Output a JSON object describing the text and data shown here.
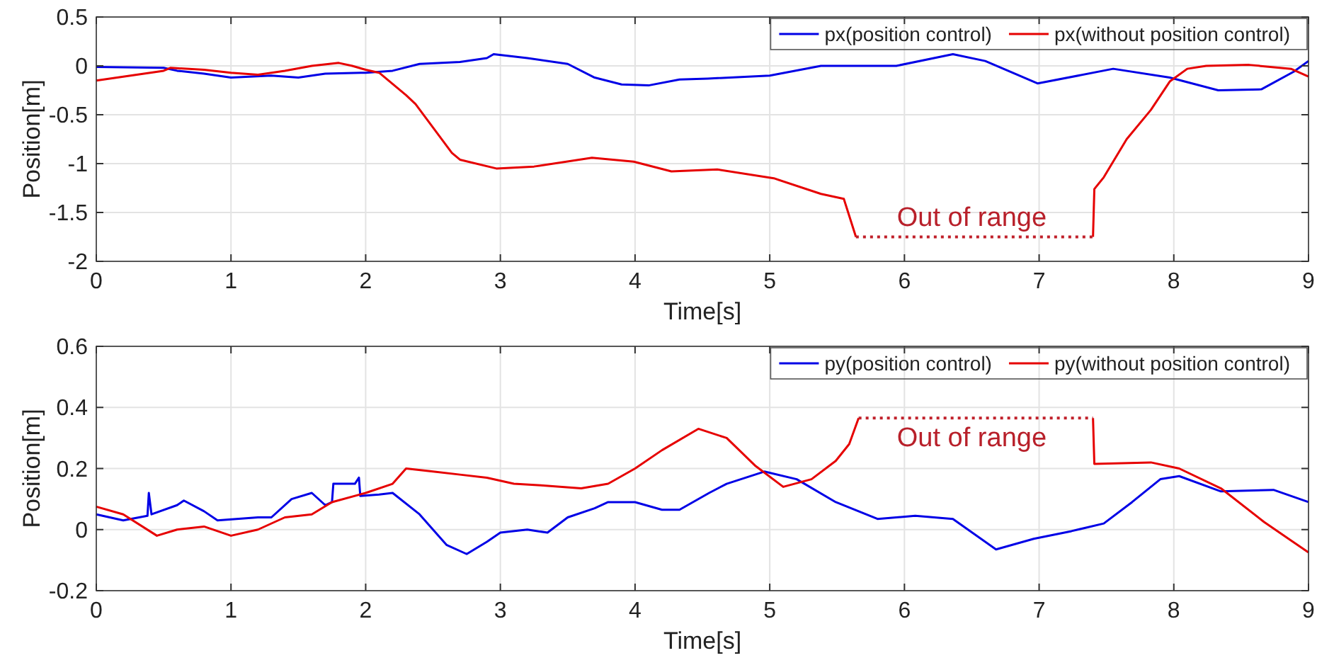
{
  "chart_data": [
    {
      "type": "line",
      "xlabel": "Time[s]",
      "ylabel": "Position[m]",
      "xlim": [
        0,
        9
      ],
      "ylim": [
        -2,
        0.5
      ],
      "xticks": [
        0,
        1,
        2,
        3,
        4,
        5,
        6,
        7,
        8,
        9
      ],
      "yticks": [
        -2,
        -1.5,
        -1,
        -0.5,
        0,
        0.5
      ],
      "grid": true,
      "legend": "top right",
      "line_style": "solid",
      "annotations": [
        {
          "text": "Out of range",
          "x": 6.5,
          "y": -1.75
        }
      ],
      "series": [
        {
          "name": "px(position control)",
          "color": "#0000e6",
          "x": [
            0,
            0.5,
            0.6,
            0.8,
            1.0,
            1.3,
            1.5,
            1.7,
            2.0,
            2.2,
            2.4,
            2.7,
            2.9,
            2.95,
            3.2,
            3.5,
            3.7,
            3.9,
            4.1,
            4.33,
            4.54,
            5.0,
            5.38,
            5.94,
            6.36,
            6.6,
            6.99,
            7.55,
            7.97,
            8.33,
            8.65,
            8.89,
            9.0
          ],
          "values": [
            -0.01,
            -0.02,
            -0.05,
            -0.08,
            -0.12,
            -0.1,
            -0.12,
            -0.08,
            -0.07,
            -0.05,
            0.02,
            0.04,
            0.08,
            0.12,
            0.08,
            0.02,
            -0.12,
            -0.19,
            -0.2,
            -0.14,
            -0.13,
            -0.1,
            0.0,
            0.0,
            0.12,
            0.05,
            -0.18,
            -0.03,
            -0.12,
            -0.25,
            -0.24,
            -0.06,
            0.05
          ]
        },
        {
          "name": "px(without position control)",
          "color": "#e60000",
          "x": [
            0,
            0.5,
            0.55,
            0.8,
            1.0,
            1.2,
            1.4,
            1.6,
            1.8,
            1.9,
            2.0,
            2.1,
            2.3,
            2.37,
            2.64,
            2.7,
            2.97,
            3.25,
            3.68,
            3.99,
            4.27,
            4.61,
            5.03,
            5.38,
            5.55,
            5.64,
            6.5,
            7.4,
            7.41,
            7.48,
            7.65,
            7.83,
            7.97,
            8.1,
            8.24,
            8.56,
            8.87,
            9.0
          ],
          "values": [
            -0.15,
            -0.05,
            -0.02,
            -0.04,
            -0.07,
            -0.09,
            -0.05,
            0.0,
            0.03,
            0.0,
            -0.04,
            -0.07,
            -0.3,
            -0.39,
            -0.89,
            -0.96,
            -1.05,
            -1.03,
            -0.94,
            -0.98,
            -1.08,
            -1.06,
            -1.15,
            -1.31,
            -1.36,
            -1.75,
            null,
            -1.75,
            -1.26,
            -1.14,
            -0.75,
            -0.45,
            -0.16,
            -0.03,
            0.0,
            0.01,
            -0.03,
            -0.11
          ]
        },
        {
          "color": "#c0202a",
          "line_style": "dotted",
          "x": [
            5.64,
            7.4
          ],
          "values": [
            -1.75,
            -1.75
          ]
        }
      ]
    },
    {
      "type": "line",
      "xlabel": "Time[s]",
      "ylabel": "Position[m]",
      "xlim": [
        0,
        9
      ],
      "ylim": [
        -0.2,
        0.6
      ],
      "xticks": [
        0,
        1,
        2,
        3,
        4,
        5,
        6,
        7,
        8,
        9
      ],
      "yticks": [
        -0.2,
        0,
        0.2,
        0.4,
        0.6
      ],
      "grid": true,
      "legend": "top right",
      "line_style": "solid",
      "annotations": [
        {
          "text": "Out of range",
          "x": 6.5,
          "y": 0.365
        }
      ],
      "series": [
        {
          "name": "py(position control)",
          "color": "#0000e6",
          "x": [
            0,
            0.1,
            0.2,
            0.38,
            0.39,
            0.41,
            0.6,
            0.65,
            0.8,
            0.9,
            1.2,
            1.3,
            1.45,
            1.6,
            1.7,
            1.75,
            1.76,
            1.92,
            1.95,
            1.96,
            2.1,
            2.2,
            2.4,
            2.6,
            2.75,
            2.9,
            3.0,
            3.2,
            3.35,
            3.5,
            3.7,
            3.8,
            4.0,
            4.2,
            4.33,
            4.55,
            4.68,
            4.96,
            5.2,
            5.49,
            5.8,
            6.08,
            6.36,
            6.68,
            6.96,
            7.24,
            7.48,
            7.69,
            7.9,
            8.04,
            8.35,
            8.74,
            9.0
          ],
          "values": [
            0.05,
            0.04,
            0.03,
            0.045,
            0.12,
            0.05,
            0.08,
            0.095,
            0.06,
            0.03,
            0.04,
            0.04,
            0.1,
            0.12,
            0.08,
            0.09,
            0.15,
            0.15,
            0.17,
            0.11,
            0.115,
            0.12,
            0.05,
            -0.05,
            -0.08,
            -0.04,
            -0.01,
            0.0,
            -0.01,
            0.04,
            0.07,
            0.09,
            0.09,
            0.065,
            0.065,
            0.12,
            0.15,
            0.19,
            0.165,
            0.09,
            0.035,
            0.045,
            0.035,
            -0.065,
            -0.03,
            -0.005,
            0.02,
            0.09,
            0.165,
            0.175,
            0.125,
            0.13,
            0.09
          ]
        },
        {
          "name": "py(without position control)",
          "color": "#e60000",
          "x": [
            0,
            0.2,
            0.45,
            0.6,
            0.8,
            1.0,
            1.2,
            1.4,
            1.6,
            1.75,
            2.0,
            2.2,
            2.3,
            2.5,
            2.7,
            2.9,
            3.1,
            3.3,
            3.6,
            3.8,
            4.0,
            4.2,
            4.47,
            4.68,
            4.89,
            5.1,
            5.31,
            5.49,
            5.59,
            5.66,
            6.5,
            7.4,
            7.41,
            7.83,
            8.04,
            8.35,
            8.67,
            9.0
          ],
          "values": [
            0.075,
            0.05,
            -0.02,
            0.0,
            0.01,
            -0.02,
            0.0,
            0.04,
            0.05,
            0.09,
            0.12,
            0.15,
            0.2,
            0.19,
            0.18,
            0.17,
            0.15,
            0.145,
            0.135,
            0.15,
            0.2,
            0.26,
            0.33,
            0.3,
            0.21,
            0.14,
            0.165,
            0.225,
            0.28,
            0.365,
            null,
            0.365,
            0.215,
            0.22,
            0.2,
            0.135,
            0.025,
            -0.075
          ]
        },
        {
          "color": "#c0202a",
          "line_style": "dotted",
          "x": [
            5.66,
            7.4
          ],
          "values": [
            0.365,
            0.365
          ]
        }
      ]
    }
  ]
}
